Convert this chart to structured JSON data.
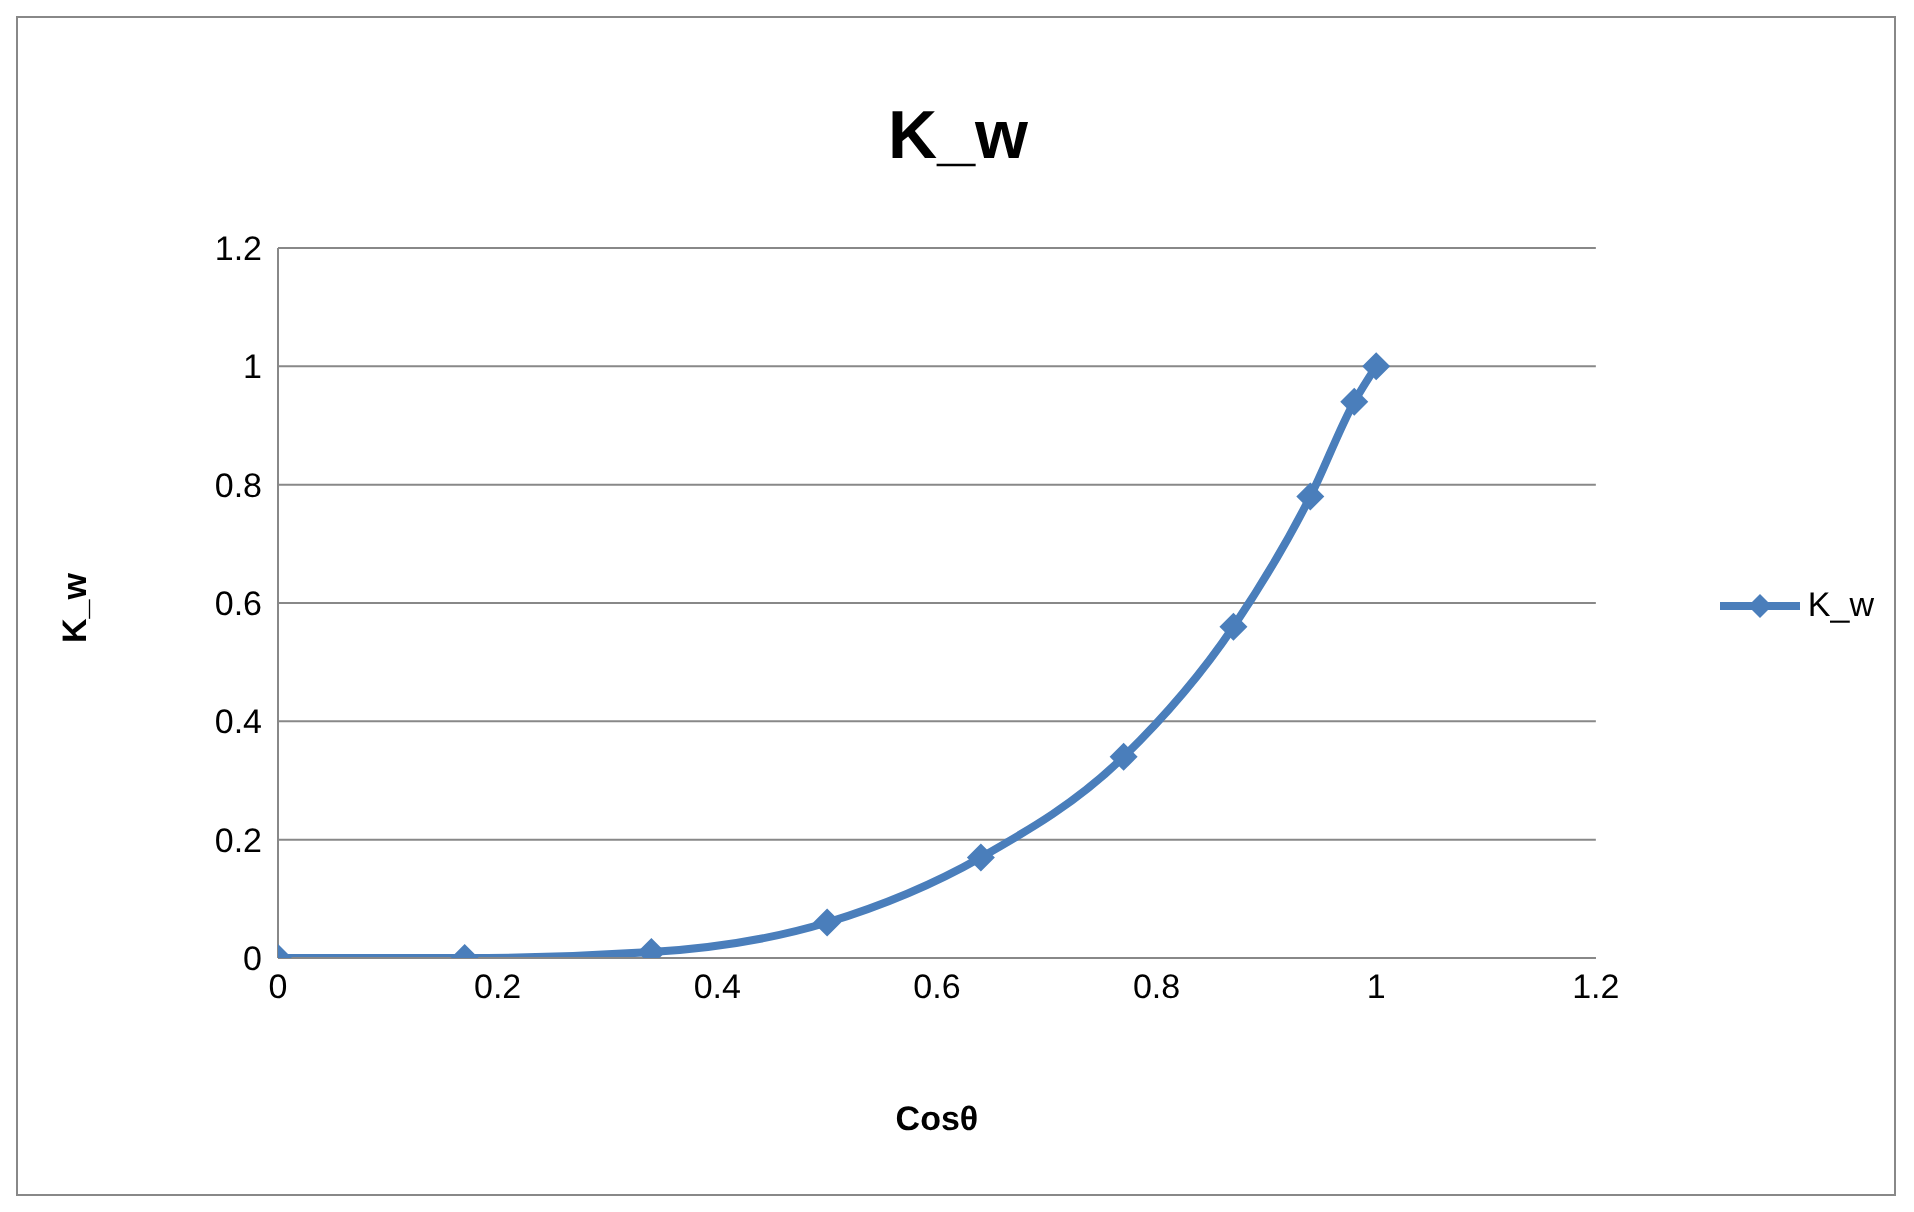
{
  "chart_data": {
    "type": "line",
    "title": "K_w",
    "xlabel": "Cosθ",
    "ylabel": "K_w",
    "x": [
      0,
      0.17,
      0.34,
      0.5,
      0.64,
      0.77,
      0.87,
      0.94,
      0.98,
      1
    ],
    "series": [
      {
        "name": "K_w",
        "color": "#4a7ebb",
        "values": [
          0,
          0,
          0.01,
          0.06,
          0.17,
          0.34,
          0.56,
          0.78,
          0.94,
          1
        ]
      }
    ],
    "xlim": [
      0,
      1.2
    ],
    "xticks": [
      0,
      0.2,
      0.4,
      0.6,
      0.8,
      1,
      1.2
    ],
    "ylim": [
      0,
      1.2
    ],
    "yticks": [
      0,
      0.2,
      0.4,
      0.6,
      0.8,
      1,
      1.2
    ],
    "grid": "y",
    "legend": "right",
    "marker": "diamond",
    "line_style": "solid"
  }
}
